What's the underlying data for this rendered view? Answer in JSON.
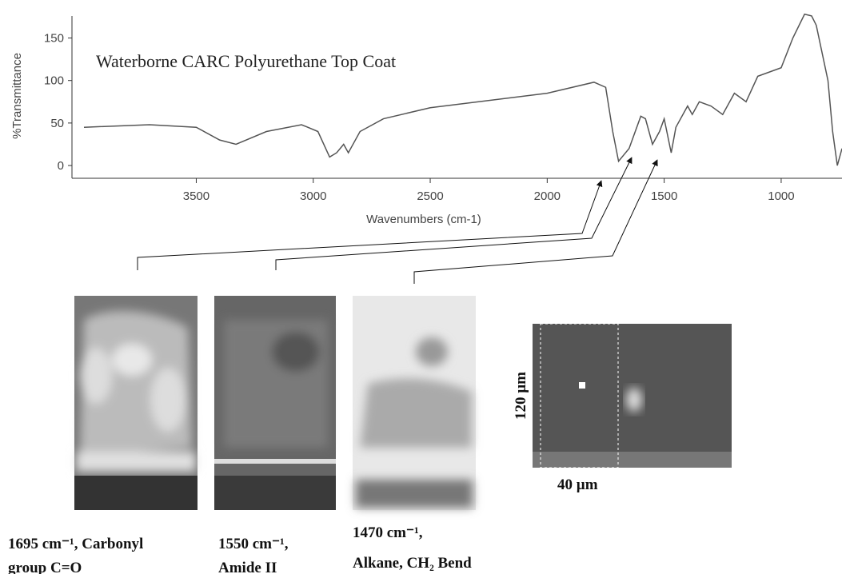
{
  "chart_data": {
    "type": "line",
    "title": "Waterborne CARC Polyurethane Top Coat",
    "x_label": "Wavenumbers (cm-1)",
    "y_label": "%Transmittance",
    "color": "#555555",
    "xlim": [
      3980,
      740
    ],
    "xticks": [
      3500,
      3000,
      2500,
      2000,
      1500,
      1000
    ],
    "ylim": [
      -15,
      190
    ],
    "yticks": [
      0,
      50,
      100,
      150
    ],
    "x": [
      3980,
      3700,
      3500,
      3400,
      3330,
      3200,
      3050,
      2980,
      2930,
      2900,
      2870,
      2850,
      2800,
      2700,
      2500,
      2000,
      1800,
      1750,
      1720,
      1695,
      1650,
      1600,
      1580,
      1550,
      1520,
      1500,
      1470,
      1450,
      1400,
      1380,
      1350,
      1300,
      1250,
      1200,
      1150,
      1100,
      1000,
      950,
      900,
      870,
      850,
      800,
      780,
      760,
      740
    ],
    "values": [
      45,
      48,
      45,
      30,
      25,
      40,
      48,
      40,
      10,
      15,
      25,
      15,
      40,
      55,
      68,
      85,
      98,
      92,
      40,
      5,
      20,
      58,
      55,
      25,
      40,
      55,
      15,
      45,
      70,
      60,
      75,
      70,
      60,
      85,
      75,
      105,
      115,
      150,
      178,
      176,
      165,
      100,
      40,
      0,
      20
    ],
    "annotations": [
      "1695 cm⁻¹, Carbonyl",
      "group C=O",
      "1550 cm⁻¹,",
      "Amide II",
      "1470 cm⁻¹,",
      "Alkane, CH₂ Bend",
      "120 µm",
      "40 µm"
    ]
  }
}
